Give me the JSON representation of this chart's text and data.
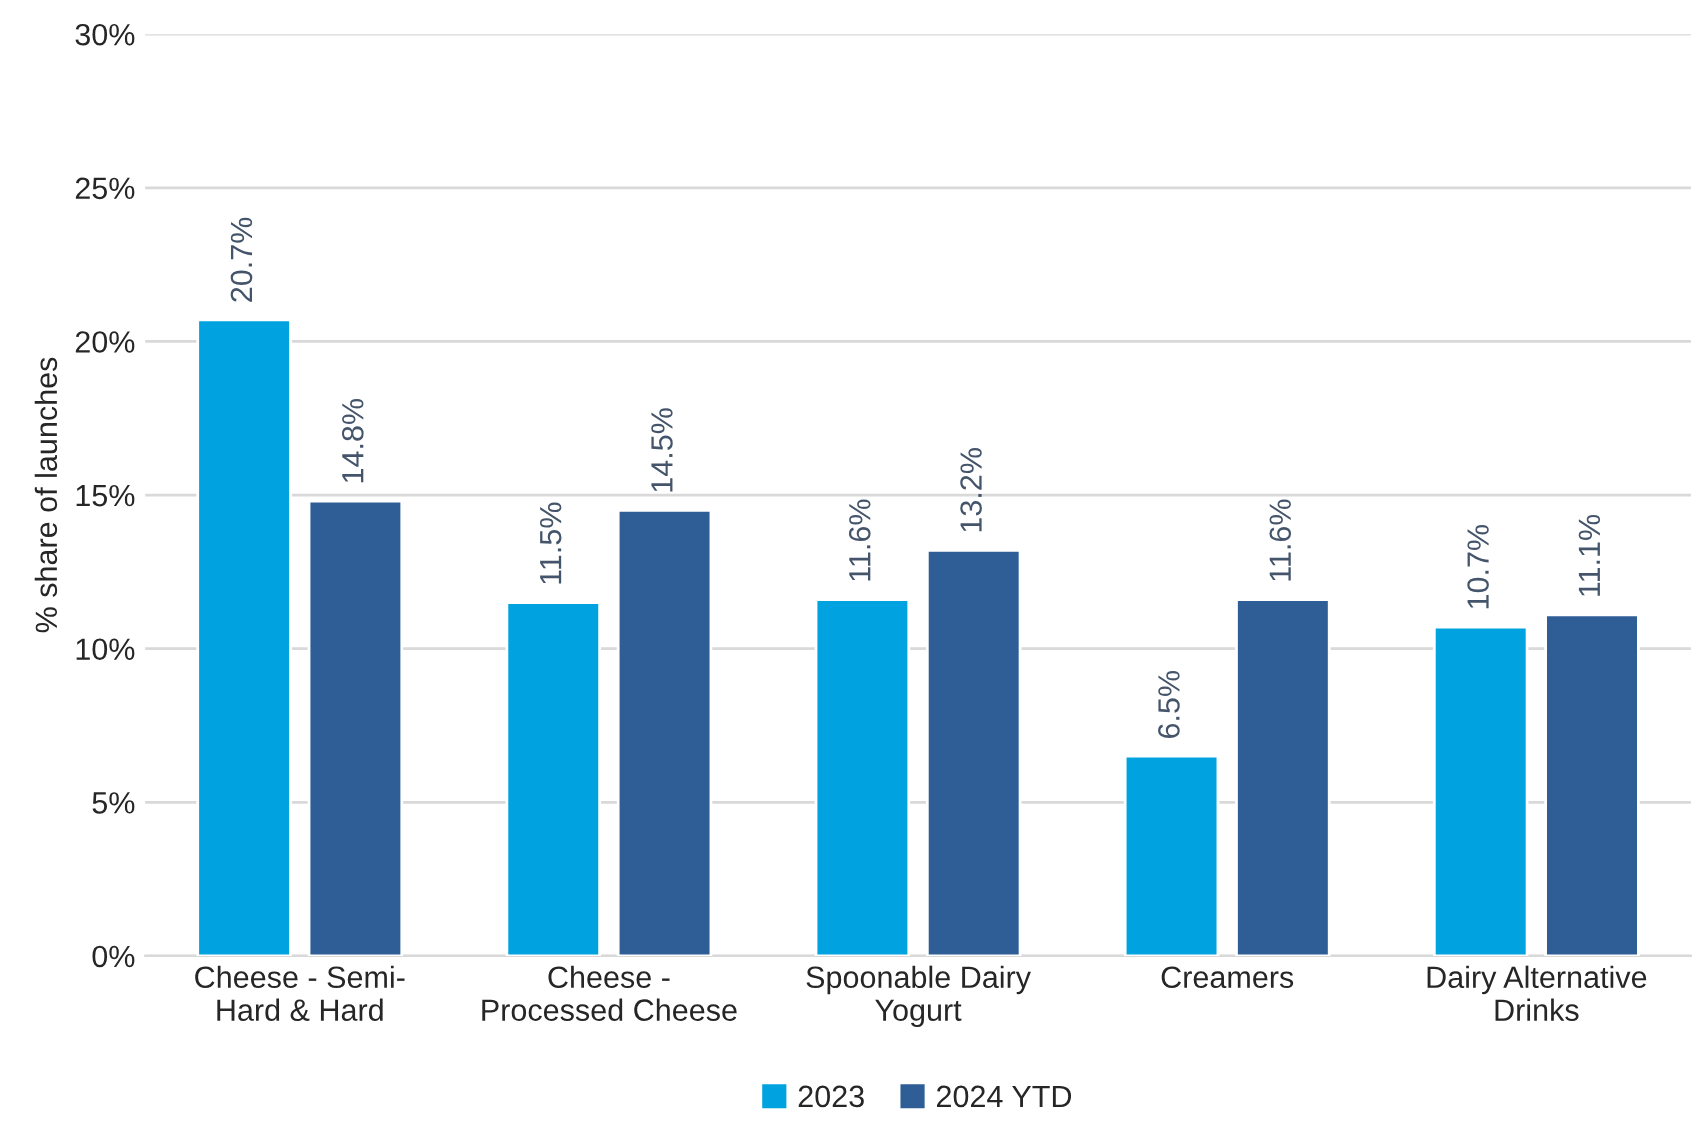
{
  "chart_data": {
    "type": "bar",
    "ylabel": "% share of launches",
    "categories": [
      "Cheese - Semi-\nHard & Hard",
      "Cheese -\nProcessed Cheese",
      "Spoonable Dairy\nYogurt",
      "Creamers",
      "Dairy Alternative\nDrinks"
    ],
    "series": [
      {
        "name": "2023",
        "color": "#00a3e0",
        "values": [
          20.7,
          11.5,
          11.6,
          6.5,
          10.7
        ],
        "value_labels": [
          "20.7%",
          "11.5%",
          "11.6%",
          "6.5%",
          "10.7%"
        ]
      },
      {
        "name": "2024 YTD",
        "color": "#2e5e95",
        "values": [
          14.8,
          14.5,
          13.2,
          11.6,
          11.1
        ],
        "value_labels": [
          "14.8%",
          "14.5%",
          "13.2%",
          "11.6%",
          "11.1%"
        ]
      }
    ],
    "ylim": [
      0,
      30
    ],
    "yticks": [
      {
        "value": 0,
        "label": "0%"
      },
      {
        "value": 5,
        "label": "5%"
      },
      {
        "value": 10,
        "label": "10%"
      },
      {
        "value": 15,
        "label": "15%"
      },
      {
        "value": 20,
        "label": "20%"
      },
      {
        "value": 25,
        "label": "25%"
      },
      {
        "value": 30,
        "label": "30%"
      }
    ],
    "grid": "y",
    "legend": "bottom"
  }
}
